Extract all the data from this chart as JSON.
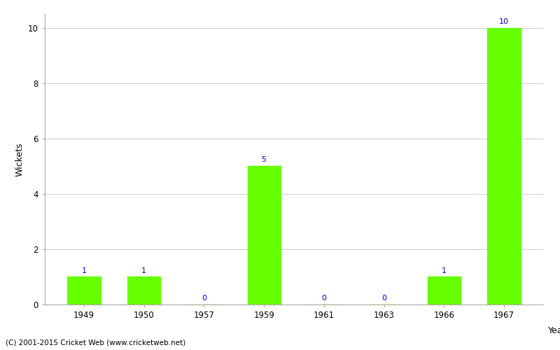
{
  "years": [
    "1949",
    "1950",
    "1957",
    "1959",
    "1961",
    "1963",
    "1966",
    "1967"
  ],
  "wickets": [
    1,
    1,
    0,
    5,
    0,
    0,
    1,
    10
  ],
  "bar_color": "#66ff00",
  "label_color": "#0000cc",
  "xlabel": "Year",
  "ylabel": "Wickets",
  "ylim": [
    0,
    10.5
  ],
  "yticks": [
    0,
    2,
    4,
    6,
    8,
    10
  ],
  "background_color": "#ffffff",
  "grid_color": "#cccccc",
  "footer": "(C) 2001-2015 Cricket Web (www.cricketweb.net)"
}
